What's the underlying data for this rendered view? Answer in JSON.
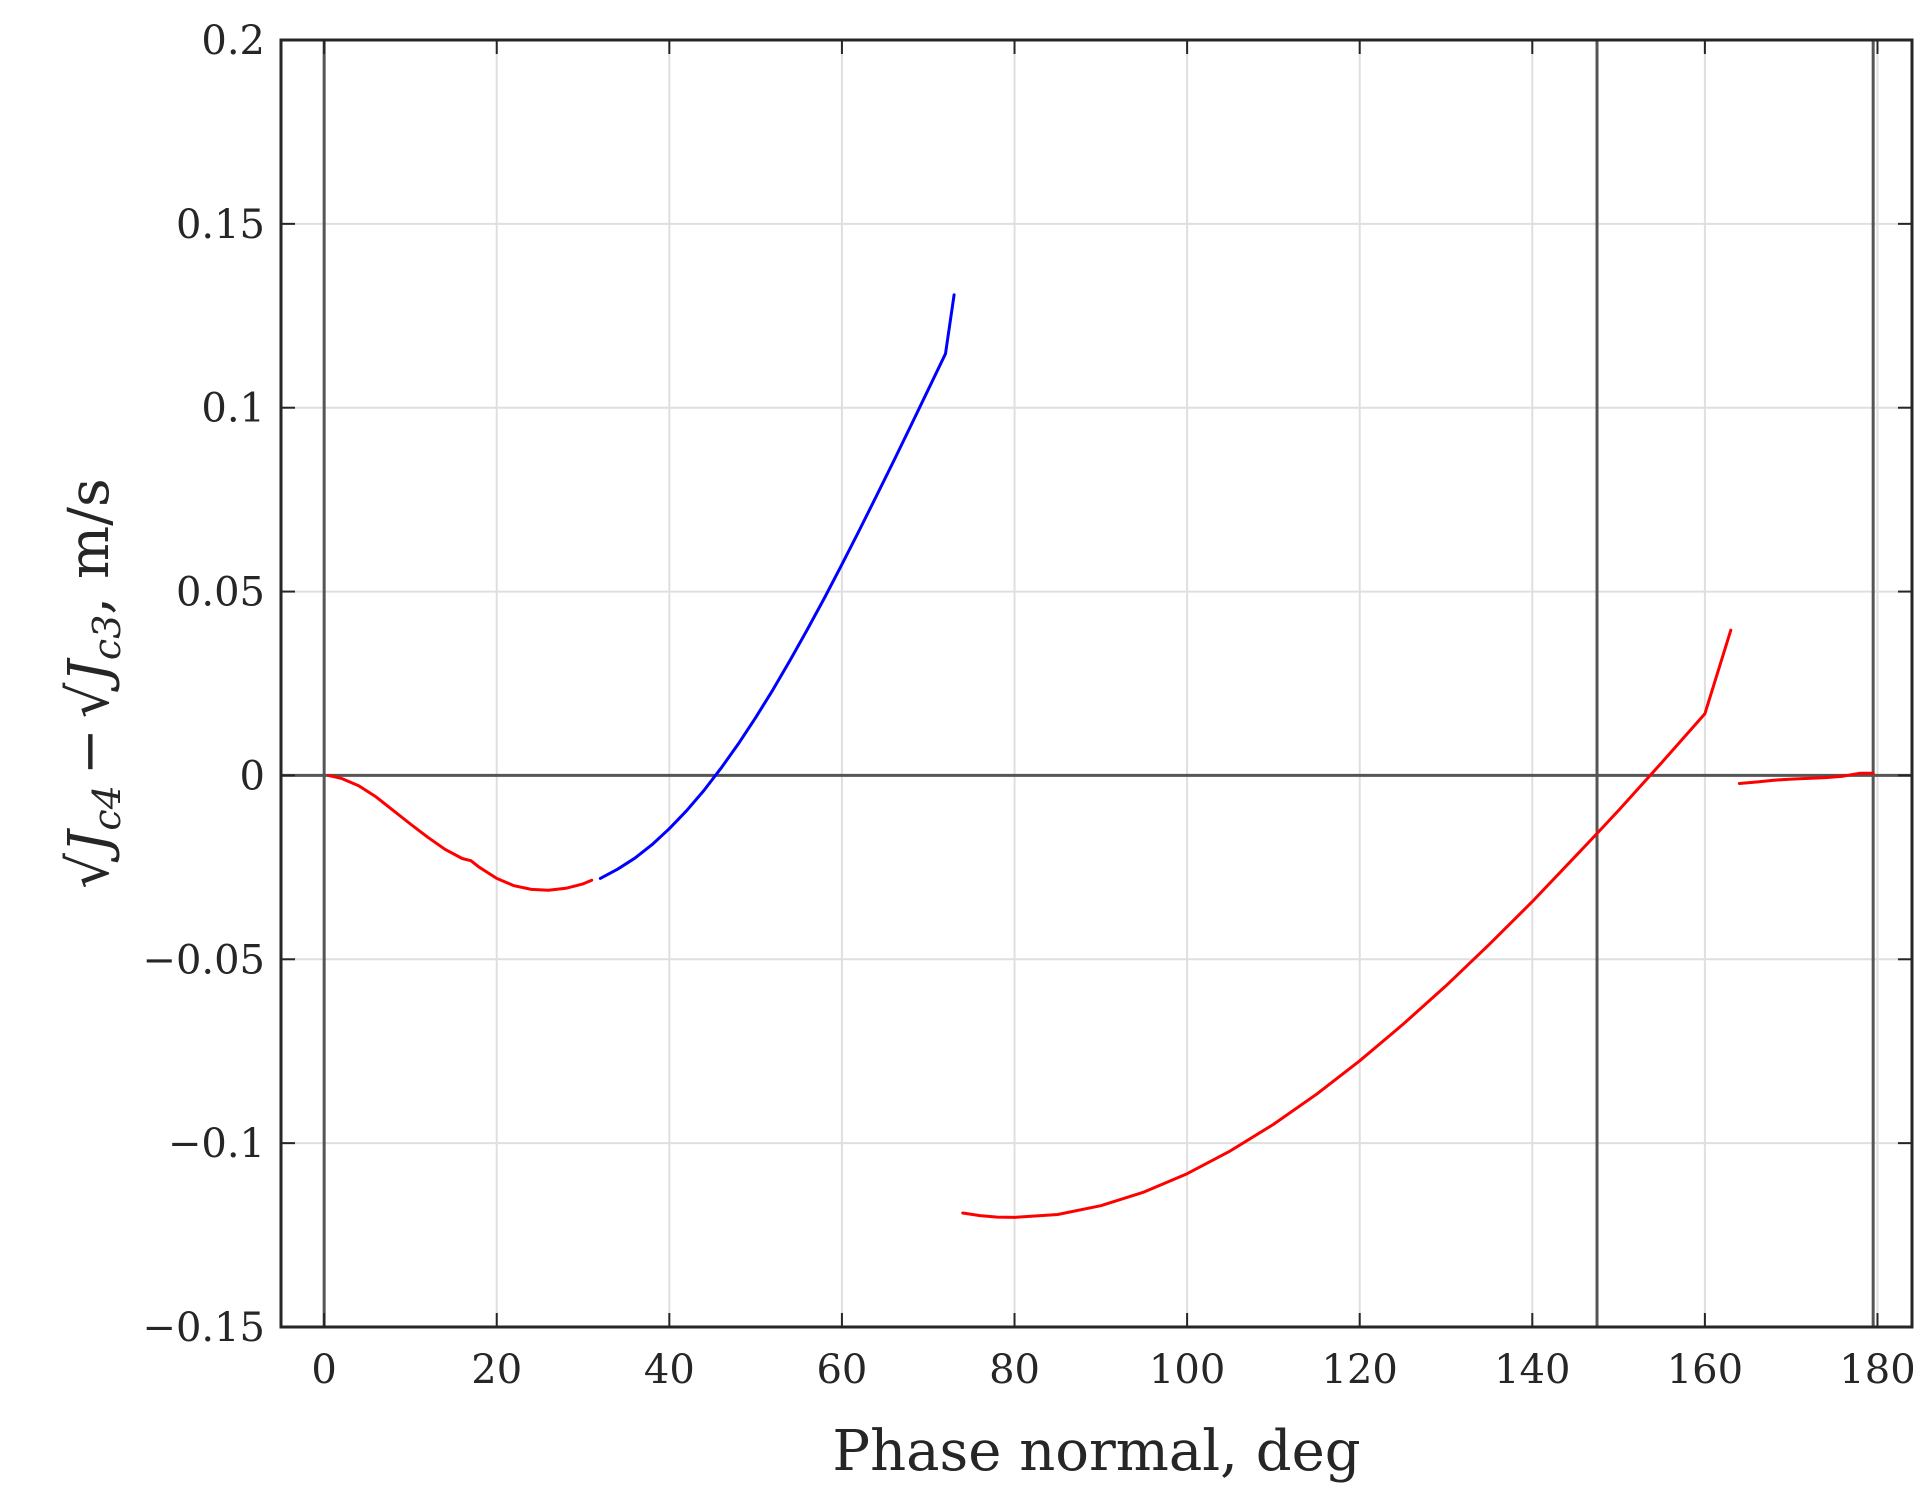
{
  "chart_data": {
    "type": "line",
    "xlabel": "Phase normal, deg",
    "ylabel": {
      "text": "√J_c4 − √J_c3, m/s",
      "part1": "J",
      "sub1": "c4",
      "minus": "−",
      "part2": "J",
      "sub2": "c3",
      "suffix": ", m/s"
    },
    "xlim": [
      -5,
      184
    ],
    "ylim": [
      -0.15,
      0.2
    ],
    "grid": true,
    "x_ticks": [
      0,
      20,
      40,
      60,
      80,
      100,
      120,
      140,
      160,
      180
    ],
    "x_tick_labels": [
      "0",
      "20",
      "40",
      "60",
      "80",
      "100",
      "120",
      "140",
      "160",
      "180"
    ],
    "y_ticks": [
      -0.15,
      -0.1,
      -0.05,
      0,
      0.05,
      0.1,
      0.15,
      0.2
    ],
    "y_tick_labels": [
      "−0.15",
      "−0.1",
      "−0.05",
      "0",
      "0.05",
      "0.1",
      "0.15",
      "0.2"
    ],
    "reference_lines": {
      "horizontal": [
        0
      ],
      "vertical": [
        0,
        147.5,
        179.5
      ]
    },
    "series": [
      {
        "color": "#ff0000",
        "x": [
          0.5,
          2,
          4,
          6,
          8,
          10,
          12,
          14,
          16,
          17,
          18,
          20,
          22,
          24,
          26,
          28,
          30,
          31
        ],
        "y": [
          0,
          -0.0008,
          -0.0028,
          -0.0058,
          -0.0095,
          -0.0132,
          -0.0168,
          -0.0201,
          -0.0226,
          -0.0232,
          -0.025,
          -0.028,
          -0.03,
          -0.031,
          -0.0312,
          -0.0307,
          -0.0295,
          -0.0285
        ]
      },
      {
        "color": "#0000ff",
        "x": [
          32,
          34,
          36,
          38,
          40,
          42,
          44,
          46,
          48,
          50,
          52,
          54,
          56,
          58,
          60,
          62,
          64,
          66,
          68,
          70,
          72,
          73
        ],
        "y": [
          -0.028,
          -0.0255,
          -0.0225,
          -0.0188,
          -0.0145,
          -0.0096,
          -0.0041,
          0.002,
          0.0086,
          0.0157,
          0.0233,
          0.0313,
          0.0397,
          0.0484,
          0.0574,
          0.0666,
          0.076,
          0.0855,
          0.0952,
          0.1049,
          0.1147,
          0.1307
        ]
      },
      {
        "color": "#ff0000",
        "x": [
          74,
          76,
          78,
          80,
          85,
          90,
          95,
          100,
          105,
          110,
          115,
          120,
          125,
          130,
          135,
          140,
          145,
          147.5,
          150,
          155,
          160,
          163
        ],
        "y": [
          -0.119,
          -0.1197,
          -0.1201,
          -0.1202,
          -0.1194,
          -0.117,
          -0.1133,
          -0.1083,
          -0.1021,
          -0.0949,
          -0.0867,
          -0.0776,
          -0.0677,
          -0.0572,
          -0.046,
          -0.0343,
          -0.022,
          -0.0158,
          -0.0095,
          0.0035,
          0.0168,
          0.0395
        ]
      },
      {
        "color": "#ff0000",
        "x": [
          164,
          166,
          168,
          170,
          172,
          174,
          176,
          178,
          179.5
        ],
        "y": [
          -0.0022,
          -0.0018,
          -0.0013,
          -0.001,
          -0.0008,
          -0.0006,
          -0.0002,
          0.0006,
          0.0006
        ]
      }
    ]
  }
}
